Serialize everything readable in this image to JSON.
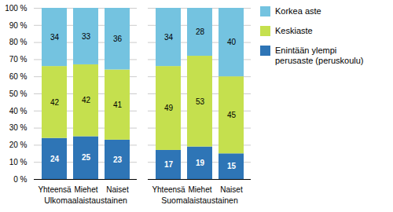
{
  "chart_data": {
    "type": "bar",
    "stacked": true,
    "categories": [
      "Yhteensä",
      "Miehet",
      "Naiset",
      "Yhteensä",
      "Miehet",
      "Naiset"
    ],
    "groups": [
      "Ulkomaalaistaustainen",
      "Suomalaistaustainen"
    ],
    "series": [
      {
        "name": "Enintään ylempi\nperusaste (peruskoulu)",
        "color": "#2e75b6",
        "values": [
          24,
          25,
          23,
          17,
          19,
          15
        ]
      },
      {
        "name": "Keskiaste",
        "color": "#c5e04e",
        "values": [
          42,
          42,
          41,
          49,
          53,
          45
        ]
      },
      {
        "name": "Korkea aste",
        "color": "#74c3e0",
        "values": [
          34,
          33,
          36,
          34,
          28,
          40
        ]
      }
    ],
    "ylim": [
      0,
      100
    ],
    "yticks": [
      {
        "value": 0,
        "label": "0 %"
      },
      {
        "value": 10,
        "label": "10 %"
      },
      {
        "value": 20,
        "label": "20 %"
      },
      {
        "value": 30,
        "label": "30 %"
      },
      {
        "value": 40,
        "label": "40 %"
      },
      {
        "value": 50,
        "label": "50 %"
      },
      {
        "value": 60,
        "label": "60 %"
      },
      {
        "value": 70,
        "label": "70 %"
      },
      {
        "value": 80,
        "label": "80 %"
      },
      {
        "value": 90,
        "label": "90 %"
      },
      {
        "value": 100,
        "label": "100 %"
      }
    ],
    "grid": true,
    "legend": "right",
    "data_labels": true
  }
}
